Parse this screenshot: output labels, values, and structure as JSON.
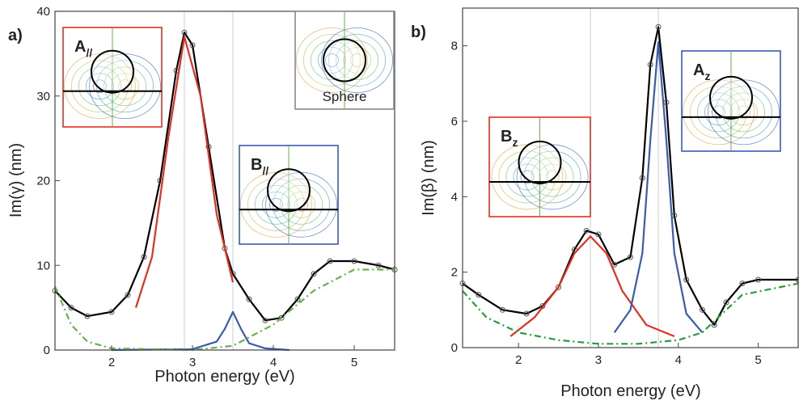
{
  "chart_data": [
    {
      "type": "line",
      "panel": "a)",
      "xlabel": "Photon energy (eV)",
      "ylabel": "Im(γ) (nm)",
      "xlim": [
        1.3,
        5.5
      ],
      "xticks": [
        2,
        3,
        4,
        5
      ],
      "ylim": [
        0,
        40
      ],
      "yticks": [
        0,
        10,
        20,
        30,
        40
      ],
      "vlines": [
        2.9,
        3.5
      ],
      "series": [
        {
          "color": "#000000",
          "markers": true,
          "x": [
            1.3,
            1.5,
            1.7,
            2.0,
            2.2,
            2.4,
            2.6,
            2.8,
            2.9,
            3.0,
            3.2,
            3.4,
            3.5,
            3.7,
            3.9,
            4.1,
            4.3,
            4.5,
            4.7,
            5.0,
            5.3,
            5.5
          ],
          "values": [
            7,
            5,
            4,
            4.5,
            6.5,
            11,
            20,
            33,
            37.5,
            36,
            24,
            12,
            9,
            6,
            3.5,
            3.8,
            6,
            9,
            10.5,
            10.5,
            10,
            9.5
          ]
        },
        {
          "color": "#e03020",
          "x": [
            2.3,
            2.5,
            2.7,
            2.9,
            3.1,
            3.3,
            3.5
          ],
          "values": [
            5,
            11,
            25,
            37,
            30,
            16,
            8
          ]
        },
        {
          "color": "#3a5bb0",
          "x": [
            2.0,
            3.0,
            3.3,
            3.4,
            3.5,
            3.6,
            3.7,
            3.9,
            4.2
          ],
          "values": [
            0,
            0.1,
            1,
            2.5,
            4.5,
            2.5,
            0.8,
            0.2,
            0
          ]
        },
        {
          "color": "#6ab04c",
          "style": "dash-dot",
          "x": [
            1.3,
            1.5,
            1.7,
            2.0,
            3.0,
            3.5,
            4.0,
            4.5,
            5.0,
            5.5
          ],
          "values": [
            7.5,
            3,
            1,
            0.2,
            0,
            0.5,
            3,
            7,
            9.5,
            9.5
          ]
        }
      ],
      "insets": [
        {
          "label": "A",
          "sub": "//",
          "color": "#e03020"
        },
        {
          "label": "Sphere",
          "color": "#888888"
        },
        {
          "label": "B",
          "sub": "//",
          "color": "#3a5bb0"
        }
      ]
    },
    {
      "type": "line",
      "panel": "b)",
      "xlabel": "Photon energy (eV)",
      "ylabel": "Im(β) (nm)",
      "xlim": [
        1.3,
        5.5
      ],
      "xticks": [
        2,
        3,
        4,
        5
      ],
      "ylim": [
        0,
        9
      ],
      "yticks": [
        0,
        2,
        4,
        6,
        8
      ],
      "vlines": [
        2.9,
        3.75
      ],
      "series": [
        {
          "color": "#000000",
          "markers": true,
          "x": [
            1.3,
            1.5,
            1.8,
            2.1,
            2.3,
            2.5,
            2.7,
            2.85,
            3.0,
            3.2,
            3.4,
            3.55,
            3.65,
            3.75,
            3.85,
            3.95,
            4.1,
            4.3,
            4.45,
            4.6,
            4.8,
            5.0,
            5.5
          ],
          "values": [
            1.7,
            1.4,
            1.0,
            0.9,
            1.1,
            1.6,
            2.6,
            3.1,
            3.0,
            2.2,
            2.4,
            4.5,
            7.5,
            8.5,
            6.5,
            3.5,
            1.8,
            1.0,
            0.6,
            1.2,
            1.7,
            1.8,
            1.8
          ]
        },
        {
          "color": "#e03020",
          "x": [
            1.9,
            2.2,
            2.5,
            2.7,
            2.9,
            3.1,
            3.3,
            3.6,
            3.95
          ],
          "values": [
            0.3,
            0.8,
            1.6,
            2.5,
            2.95,
            2.5,
            1.5,
            0.6,
            0.3
          ]
        },
        {
          "color": "#3a5bb0",
          "x": [
            3.2,
            3.4,
            3.55,
            3.65,
            3.75,
            3.85,
            3.95,
            4.1,
            4.3
          ],
          "values": [
            0.4,
            1.0,
            2.5,
            5.5,
            8.1,
            5.5,
            2.5,
            0.9,
            0.4
          ]
        },
        {
          "color": "#2a9a3a",
          "style": "dash-dot",
          "x": [
            1.3,
            1.6,
            2.0,
            2.5,
            3.0,
            3.5,
            4.0,
            4.3,
            4.5,
            4.8,
            5.5
          ],
          "values": [
            1.5,
            0.8,
            0.4,
            0.2,
            0.1,
            0.1,
            0.2,
            0.4,
            0.8,
            1.4,
            1.7
          ]
        }
      ],
      "insets": [
        {
          "label": "B",
          "sub": "z",
          "color": "#e03020"
        },
        {
          "label": "A",
          "sub": "z",
          "color": "#3a5bb0"
        }
      ]
    }
  ]
}
